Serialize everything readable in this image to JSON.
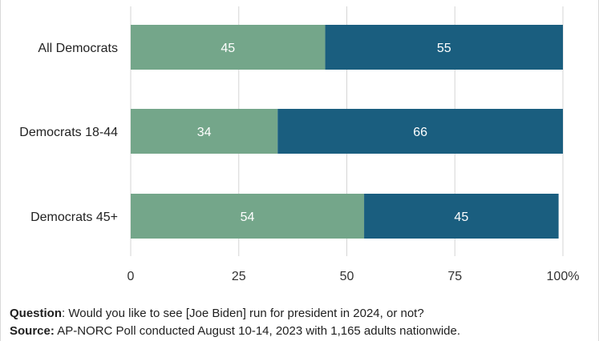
{
  "chart_data": {
    "type": "bar",
    "orientation": "horizontal",
    "stacked": true,
    "categories": [
      "All Democrats",
      "Democrats 18-44",
      "Democrats 45+"
    ],
    "series": [
      {
        "values": [
          45,
          34,
          54
        ],
        "color": "#74a68a"
      },
      {
        "values": [
          55,
          66,
          45
        ],
        "color": "#1a5e7f"
      }
    ],
    "x_ticks": [
      "0",
      "25",
      "50",
      "75",
      "100%"
    ],
    "xlim": [
      0,
      100
    ],
    "grid": true
  },
  "footnote": {
    "question_label": "Question",
    "question_text": ": Would you like to see [Joe Biden] run for president in 2024, or not?",
    "source_label": "Source:",
    "source_text": " AP-NORC Poll conducted August 10-14, 2023 with 1,165 adults nationwide."
  }
}
